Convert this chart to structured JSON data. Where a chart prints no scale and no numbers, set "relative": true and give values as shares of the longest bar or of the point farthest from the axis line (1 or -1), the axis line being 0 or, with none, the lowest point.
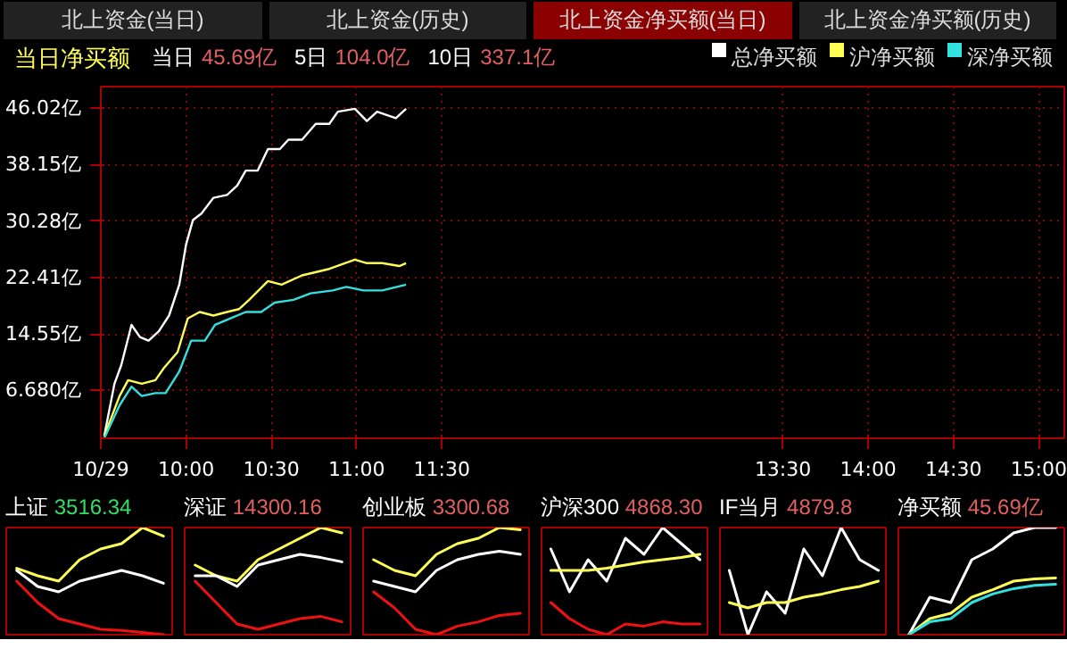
{
  "chart_data": [
    {
      "type": "line",
      "title": "当日净买额",
      "annotations": [
        "北上资金(当日)",
        "北上资金(历史)",
        "北上资金净买额(当日)",
        "北上资金净买额(历史)",
        "当日",
        "45.69亿",
        "5日",
        "104.0亿",
        "10日",
        "337.1亿"
      ],
      "xlim": [
        9.5,
        15.15
      ],
      "ylim": [
        0,
        49
      ],
      "xticks": [
        {
          "value": 9.5,
          "label": "10/29"
        },
        {
          "value": 10,
          "label": "10:00"
        },
        {
          "value": 10.5,
          "label": "10:30"
        },
        {
          "value": 11,
          "label": "11:00"
        },
        {
          "value": 11.5,
          "label": "11:30"
        },
        {
          "value": 13.5,
          "label": "13:30"
        },
        {
          "value": 14,
          "label": "14:00"
        },
        {
          "value": 14.5,
          "label": "14:30"
        },
        {
          "value": 15,
          "label": "15:00"
        }
      ],
      "yticks": [
        {
          "value": 6.68,
          "label": "6.680亿"
        },
        {
          "value": 14.55,
          "label": "14.55亿"
        },
        {
          "value": 22.41,
          "label": "22.41亿"
        },
        {
          "value": 30.28,
          "label": "30.28亿"
        },
        {
          "value": 38.15,
          "label": "38.15亿"
        },
        {
          "value": 46.02,
          "label": "46.02亿"
        }
      ],
      "grid": true,
      "legend": "top right",
      "series": [
        {
          "name": "总净买额",
          "color": "#ffffff",
          "x": [
            9.52,
            9.58,
            9.62,
            9.68,
            9.73,
            9.78,
            9.84,
            9.9,
            9.96,
            10.0,
            10.04,
            10.09,
            10.16,
            10.24,
            10.3,
            10.35,
            10.42,
            10.48,
            10.55,
            10.6,
            10.68,
            10.76,
            10.84,
            10.89,
            10.99,
            11.06,
            11.12,
            11.23,
            11.29
          ],
          "values": [
            0.3,
            7.6,
            10.2,
            15.8,
            14.1,
            13.6,
            14.9,
            17.1,
            21.4,
            27.0,
            30.4,
            31.3,
            33.5,
            33.9,
            35.2,
            37.3,
            37.3,
            40.3,
            40.3,
            41.6,
            41.6,
            43.8,
            43.8,
            45.5,
            45.9,
            44.2,
            45.5,
            44.6,
            45.9
          ]
        },
        {
          "name": "沪净买额",
          "color": "#ffff55",
          "x": [
            9.52,
            9.61,
            9.66,
            9.74,
            9.82,
            9.87,
            9.95,
            10.01,
            10.08,
            10.16,
            10.24,
            10.31,
            10.37,
            10.48,
            10.56,
            10.68,
            10.84,
            10.99,
            11.06,
            11.15,
            11.25,
            11.29
          ],
          "values": [
            0.3,
            5.9,
            8.1,
            7.6,
            8.1,
            9.8,
            12.0,
            16.7,
            17.6,
            17.1,
            17.6,
            18.0,
            19.3,
            21.9,
            21.4,
            22.7,
            23.6,
            24.9,
            24.4,
            24.4,
            24.0,
            24.4
          ]
        },
        {
          "name": "深净买额",
          "color": "#33e0e0",
          "x": [
            9.52,
            9.61,
            9.68,
            9.74,
            9.82,
            9.88,
            9.96,
            10.03,
            10.11,
            10.17,
            10.26,
            10.35,
            10.44,
            10.52,
            10.63,
            10.73,
            10.86,
            10.94,
            11.04,
            11.15,
            11.29
          ],
          "values": [
            0,
            4.6,
            7.2,
            5.9,
            6.3,
            6.3,
            9.3,
            13.6,
            13.6,
            15.8,
            16.7,
            17.6,
            17.6,
            18.9,
            19.3,
            20.2,
            20.6,
            21.1,
            20.6,
            20.6,
            21.4
          ]
        }
      ]
    },
    {
      "type": "line",
      "title": "上证",
      "subtitle": "3516.34",
      "relative": true,
      "tick_labels": false,
      "categories": [
        null,
        null,
        null,
        null,
        null,
        null,
        null,
        null
      ],
      "series": [
        {
          "color": "#ffff55",
          "values": [
            0.62,
            0.55,
            0.5,
            0.7,
            0.8,
            0.85,
            1.0,
            0.92
          ]
        },
        {
          "color": "#ffffff",
          "values": [
            0.6,
            0.45,
            0.4,
            0.5,
            0.55,
            0.6,
            0.55,
            0.48
          ]
        },
        {
          "color": "#ee1111",
          "values": [
            0.5,
            0.3,
            0.15,
            0.1,
            0.05,
            0.04,
            0.02,
            0.0
          ]
        }
      ]
    },
    {
      "type": "line",
      "title": "深证",
      "subtitle": "14300.16",
      "relative": true,
      "tick_labels": false,
      "categories": [
        null,
        null,
        null,
        null,
        null,
        null,
        null,
        null
      ],
      "series": [
        {
          "color": "#ffff55",
          "values": [
            0.65,
            0.55,
            0.5,
            0.7,
            0.8,
            0.9,
            1.0,
            0.95
          ]
        },
        {
          "color": "#ffffff",
          "values": [
            0.55,
            0.55,
            0.45,
            0.65,
            0.7,
            0.75,
            0.72,
            0.68
          ]
        },
        {
          "color": "#ee1111",
          "values": [
            0.5,
            0.3,
            0.1,
            0.05,
            0.1,
            0.15,
            0.17,
            0.12
          ]
        }
      ]
    },
    {
      "type": "line",
      "title": "创业板",
      "subtitle": "3300.68",
      "relative": true,
      "tick_labels": false,
      "categories": [
        null,
        null,
        null,
        null,
        null,
        null,
        null,
        null
      ],
      "series": [
        {
          "color": "#ffff55",
          "values": [
            0.7,
            0.6,
            0.55,
            0.75,
            0.85,
            0.9,
            1.0,
            0.98
          ]
        },
        {
          "color": "#ffffff",
          "values": [
            0.5,
            0.45,
            0.4,
            0.6,
            0.7,
            0.75,
            0.78,
            0.75
          ]
        },
        {
          "color": "#ee1111",
          "values": [
            0.4,
            0.25,
            0.05,
            0.0,
            0.08,
            0.12,
            0.18,
            0.2
          ]
        }
      ]
    },
    {
      "type": "line",
      "title": "沪深300",
      "subtitle": "4868.30",
      "relative": true,
      "tick_labels": false,
      "categories": [
        null,
        null,
        null,
        null,
        null,
        null,
        null,
        null,
        null
      ],
      "series": [
        {
          "color": "#ffffff",
          "values": [
            0.8,
            0.4,
            0.7,
            0.5,
            0.9,
            0.75,
            1.0,
            0.85,
            0.7
          ]
        },
        {
          "color": "#ffff55",
          "values": [
            0.6,
            0.6,
            0.6,
            0.62,
            0.65,
            0.68,
            0.7,
            0.72,
            0.75
          ]
        },
        {
          "color": "#ee1111",
          "values": [
            0.3,
            0.15,
            0.05,
            0.0,
            0.1,
            0.08,
            0.12,
            0.1,
            0.1
          ]
        }
      ]
    },
    {
      "type": "line",
      "title": "IF当月",
      "subtitle": "4879.8",
      "relative": true,
      "tick_labels": false,
      "categories": [
        null,
        null,
        null,
        null,
        null,
        null,
        null,
        null,
        null
      ],
      "series": [
        {
          "color": "#ffffff",
          "values": [
            0.6,
            0.0,
            0.4,
            0.2,
            0.8,
            0.55,
            1.0,
            0.7,
            0.6
          ]
        },
        {
          "color": "#ffff55",
          "values": [
            0.3,
            0.25,
            0.3,
            0.3,
            0.35,
            0.38,
            0.42,
            0.45,
            0.5
          ]
        }
      ]
    },
    {
      "type": "line",
      "title": "净买额",
      "subtitle": "45.69亿",
      "relative": true,
      "tick_labels": false,
      "categories": [
        null,
        null,
        null,
        null,
        null,
        null,
        null,
        null
      ],
      "series": [
        {
          "color": "#ffffff",
          "values": [
            0,
            0.35,
            0.3,
            0.7,
            0.8,
            0.95,
            1.0,
            1.0
          ]
        },
        {
          "color": "#ffff55",
          "values": [
            0,
            0.15,
            0.2,
            0.35,
            0.42,
            0.5,
            0.52,
            0.53
          ]
        },
        {
          "color": "#33e0e0",
          "values": [
            0,
            0.12,
            0.15,
            0.3,
            0.38,
            0.43,
            0.46,
            0.47
          ]
        }
      ]
    }
  ]
}
